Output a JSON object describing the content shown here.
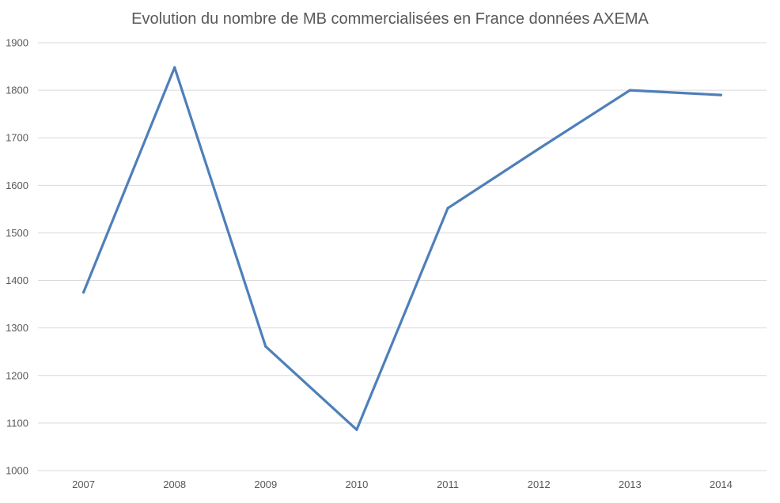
{
  "chart_data": {
    "type": "line",
    "title": "Evolution du nombre de MB commercialisées en France données AXEMA",
    "xlabel": "",
    "ylabel": "",
    "categories": [
      "2007",
      "2008",
      "2009",
      "2010",
      "2011",
      "2012",
      "2013",
      "2014"
    ],
    "series": [
      {
        "values": [
          1375,
          1848,
          1261,
          1086,
          1552,
          1677,
          1800,
          1790
        ]
      }
    ],
    "ylim": [
      1000,
      1900
    ],
    "yticks": [
      "1000",
      "1100",
      "1200",
      "1300",
      "1400",
      "1500",
      "1600",
      "1700",
      "1800",
      "1900"
    ],
    "grid": true,
    "legend": "none",
    "line_color": "#4e7fba"
  }
}
